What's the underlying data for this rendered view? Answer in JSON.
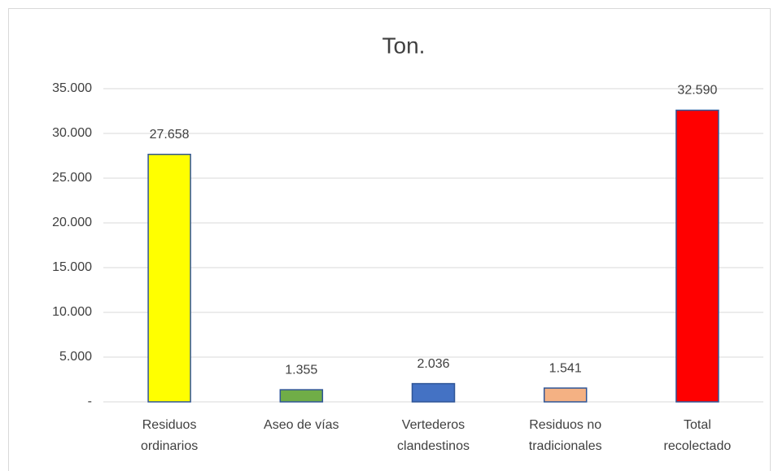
{
  "chart_data": {
    "type": "bar",
    "title": "Ton.",
    "categories": [
      "Residuos ordinarios",
      "Aseo de vías",
      "Vertederos clandestinos",
      "Residuos no tradicionales",
      "Total recolectado"
    ],
    "values": [
      27658,
      1355,
      2036,
      1541,
      32590
    ],
    "value_labels": [
      "27.658",
      "1.355",
      "2.036",
      "1.541",
      "32.590"
    ],
    "colors": [
      "#ffff00",
      "#70ad47",
      "#4472c4",
      "#f4b183",
      "#ff0000"
    ],
    "ylim": [
      0,
      35000
    ],
    "yticks": [
      {
        "value": 0,
        "label": "-"
      },
      {
        "value": 5000,
        "label": "5.000"
      },
      {
        "value": 10000,
        "label": "10.000"
      },
      {
        "value": 15000,
        "label": "15.000"
      },
      {
        "value": 20000,
        "label": "20.000"
      },
      {
        "value": 25000,
        "label": "25.000"
      },
      {
        "value": 30000,
        "label": "30.000"
      },
      {
        "value": 35000,
        "label": "35.000"
      }
    ],
    "grid": true
  }
}
